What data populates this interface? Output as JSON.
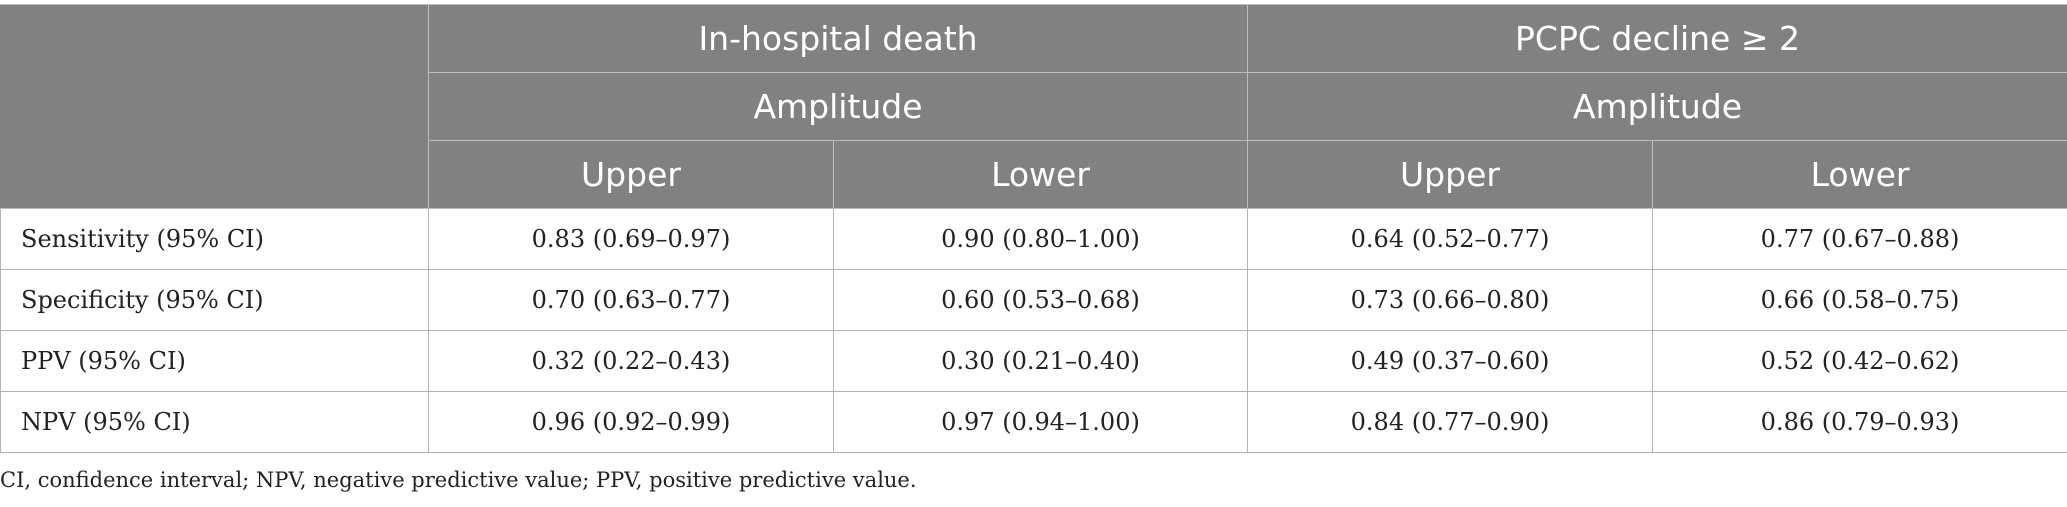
{
  "header": {
    "group1": "In-hospital death",
    "group2": "PCPC decline ≥ 2",
    "subgroup": "Amplitude",
    "upper": "Upper",
    "lower": "Lower"
  },
  "rows": [
    {
      "label": "Sensitivity (95% CI)",
      "v1": "0.83 (0.69–0.97)",
      "v2": "0.90 (0.80–1.00)",
      "v3": "0.64 (0.52–0.77)",
      "v4": "0.77 (0.67–0.88)"
    },
    {
      "label": "Specificity (95% CI)",
      "v1": "0.70 (0.63–0.77)",
      "v2": "0.60 (0.53–0.68)",
      "v3": "0.73 (0.66–0.80)",
      "v4": "0.66 (0.58–0.75)"
    },
    {
      "label": "PPV (95% CI)",
      "v1": "0.32 (0.22–0.43)",
      "v2": "0.30 (0.21–0.40)",
      "v3": "0.49 (0.37–0.60)",
      "v4": "0.52 (0.42–0.62)"
    },
    {
      "label": "NPV (95% CI)",
      "v1": "0.96 (0.92–0.99)",
      "v2": "0.97 (0.94–1.00)",
      "v3": "0.84 (0.77–0.90)",
      "v4": "0.86 (0.79–0.93)"
    }
  ],
  "footnote": "CI, confidence interval; NPV, negative predictive value; PPV, positive predictive value.",
  "colors": {
    "header_bg": "#808180",
    "header_text": "#ffffff",
    "grid": "#b3b3b3"
  }
}
